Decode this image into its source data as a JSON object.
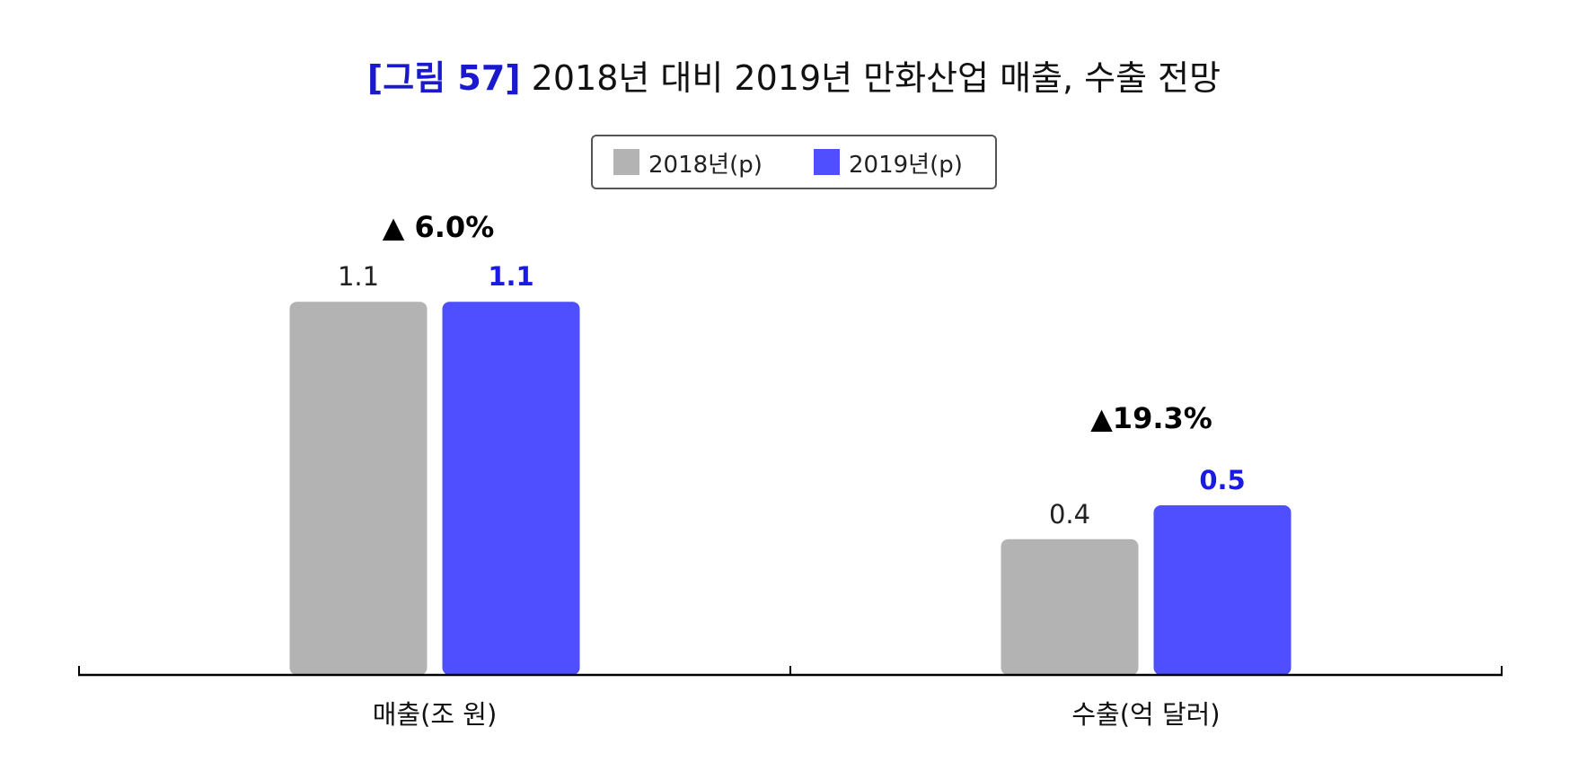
{
  "title": {
    "prefix": "[그림 57]",
    "main": "2018년 대비 2019년 만화산업 매출, 수출 전망"
  },
  "colors": {
    "series_2018": "#b3b3b3",
    "series_2019": "#4f4fff",
    "label_2019": "#1a1ae6",
    "title_prefix": "#1a1acc"
  },
  "chart_data": {
    "type": "bar",
    "title": "2018년 대비 2019년 만화산업 매출, 수출 전망",
    "categories": [
      "매출(조 원)",
      "수출(억 달러)"
    ],
    "series": [
      {
        "name": "2018년(p)",
        "values": [
          1.1,
          0.4
        ],
        "labels": [
          "1.1",
          "0.4"
        ]
      },
      {
        "name": "2019년(p)",
        "values": [
          1.1,
          0.5
        ],
        "labels": [
          "1.1",
          "0.5"
        ]
      }
    ],
    "annotations": [
      "▲ 6.0%",
      "▲19.3%"
    ],
    "xlabel": "",
    "ylabel": "",
    "legend_position": "top-center"
  }
}
